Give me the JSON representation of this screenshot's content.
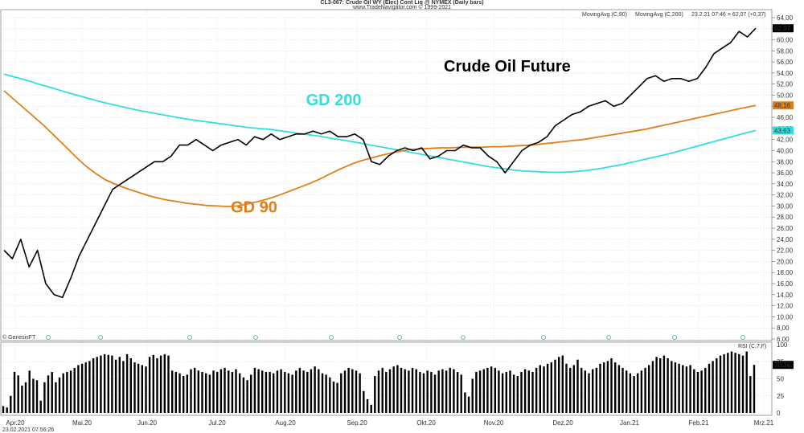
{
  "header": {
    "title_line1": "CL3-067: Crude Oil WY (Elec) Cont Liq @ NYMEX  (Daily bars)",
    "title_line2": "www.TradeNavigator.com © 1999-2021",
    "legend_ma90": "MovingAvg (C,90)",
    "legend_ma200": "MovingAvg (C,200)",
    "info": "23.2.21 07:46 = 62,07 (+0,37)"
  },
  "footer": {
    "genesis": "© GenesisFT",
    "timestamp": "23.02.2021 07:56:26"
  },
  "rsi_label": "RSI (C,7,F)",
  "chart_data": {
    "type": "line",
    "title": "Crude Oil Future",
    "colors": {
      "price": "#000000",
      "ma90": "#e07f1a",
      "ma200": "#33dede"
    },
    "annotations": [
      {
        "text": "GD 200",
        "color": "#33dede",
        "x_index": 40,
        "y": 48.2
      },
      {
        "text": "GD 90",
        "color": "#e07f1a",
        "x_index": 31,
        "y": 28.8
      }
    ],
    "price_axis": {
      "min": 6,
      "max": 65,
      "ticks": [
        "6,00",
        "8,00",
        "10,00",
        "12,00",
        "14,00",
        "16,00",
        "18,00",
        "20,00",
        "22,00",
        "24,00",
        "26,00",
        "28,00",
        "30,00",
        "32,00",
        "34,00",
        "36,00",
        "38,00",
        "40,00",
        "42,00",
        "44,00",
        "46,00",
        "48,00",
        "50,00",
        "52,00",
        "54,00",
        "56,00",
        "58,00",
        "60,00",
        "62,00",
        "64,00"
      ],
      "last_price_tag": "62,07",
      "ma90_tag": "48,16",
      "ma200_tag": "43,63"
    },
    "x_labels": [
      "Apr.20",
      "Mai.20",
      "Jun.20",
      "Jul.20",
      "Aug.20",
      "Sep.20",
      "Okt.20",
      "Nov.20",
      "Dez.20",
      "Jan.21",
      "Feb.21",
      "Mrz.21"
    ],
    "month_start_index": [
      0,
      9,
      18,
      27,
      36,
      45,
      54,
      63,
      72,
      81,
      90,
      99
    ],
    "price": [
      22,
      20.5,
      24,
      19,
      22,
      16,
      14,
      13.5,
      17,
      21,
      24,
      27,
      30,
      33,
      34,
      35,
      36,
      37,
      38,
      38,
      39,
      41,
      41,
      42,
      41,
      40,
      41,
      41.5,
      42,
      41,
      42.5,
      42,
      43,
      42,
      42.5,
      43,
      43,
      43.5,
      43,
      43.5,
      42.5,
      42.5,
      43,
      42,
      38,
      37.5,
      39,
      40,
      40.5,
      40,
      40.5,
      38.5,
      39,
      40,
      40,
      41,
      40.5,
      40.5,
      39,
      38,
      36,
      38,
      40,
      41,
      41.5,
      42.5,
      44.5,
      45.5,
      46.5,
      47,
      48,
      48.5,
      49,
      48,
      48.5,
      50,
      51.5,
      53,
      53.5,
      52.5,
      53,
      53,
      52.5,
      53,
      55,
      57.5,
      58.5,
      59.5,
      61.5,
      60.5,
      62.07
    ],
    "ma90": [
      50.8,
      49.2,
      47.6,
      46.0,
      44.4,
      42.6,
      40.8,
      39.0,
      37.3,
      35.9,
      34.7,
      33.9,
      33.2,
      32.6,
      32.0,
      31.5,
      31.1,
      30.8,
      30.5,
      30.3,
      30.1,
      30.0,
      29.9,
      30.0,
      30.4,
      30.8,
      31.3,
      31.9,
      32.6,
      33.3,
      34.0,
      34.8,
      35.7,
      36.6,
      37.4,
      38.1,
      38.6,
      39.1,
      39.5,
      39.9,
      40.2,
      40.3,
      40.4,
      40.5,
      40.5,
      40.6,
      40.6,
      40.6,
      40.7,
      40.7,
      40.8,
      40.9,
      41.0,
      41.2,
      41.4,
      41.6,
      41.8,
      42.0,
      42.3,
      42.6,
      42.9,
      43.2,
      43.5,
      43.8,
      44.2,
      44.6,
      45.0,
      45.4,
      45.8,
      46.2,
      46.6,
      47.0,
      47.4,
      47.8,
      48.16
    ],
    "ma200": [
      53.8,
      53.2,
      52.6,
      51.9,
      51.3,
      50.6,
      50.0,
      49.4,
      48.8,
      48.3,
      47.8,
      47.3,
      46.9,
      46.5,
      46.1,
      45.7,
      45.4,
      45.1,
      44.8,
      44.5,
      44.2,
      44.0,
      43.8,
      43.5,
      43.2,
      42.9,
      42.6,
      42.2,
      41.9,
      41.5,
      41.1,
      40.7,
      40.3,
      39.9,
      39.5,
      39.1,
      38.7,
      38.3,
      37.9,
      37.5,
      37.1,
      36.8,
      36.5,
      36.3,
      36.2,
      36.1,
      36.1,
      36.2,
      36.4,
      36.7,
      37.1,
      37.5,
      38.0,
      38.5,
      39.0,
      39.5,
      40.1,
      40.7,
      41.3,
      41.9,
      42.5,
      43.1,
      43.63
    ],
    "rsi_axis": {
      "min": 0,
      "max": 100,
      "ticks": [
        "0",
        "25",
        "50",
        "75",
        "100"
      ],
      "last_tag": "70,36"
    },
    "rsi": [
      10,
      8,
      25,
      60,
      55,
      40,
      45,
      62,
      50,
      48,
      18,
      45,
      55,
      60,
      45,
      52,
      58,
      60,
      62,
      66,
      70,
      72,
      74,
      76,
      80,
      82,
      84,
      86,
      85,
      84,
      78,
      82,
      76,
      86,
      80,
      74,
      72,
      70,
      68,
      82,
      85,
      80,
      84,
      86,
      84,
      62,
      60,
      58,
      54,
      56,
      64,
      66,
      62,
      60,
      58,
      56,
      62,
      60,
      64,
      66,
      62,
      60,
      64,
      58,
      52,
      48,
      56,
      66,
      64,
      62,
      60,
      60,
      58,
      62,
      64,
      60,
      58,
      56,
      62,
      66,
      62,
      60,
      64,
      68,
      64,
      58,
      56,
      52,
      46,
      44,
      58,
      62,
      66,
      64,
      62,
      58,
      32,
      20,
      12,
      54,
      62,
      66,
      60,
      64,
      68,
      70,
      66,
      64,
      62,
      66,
      64,
      60,
      58,
      62,
      60,
      56,
      62,
      64,
      62,
      66,
      64,
      60,
      56,
      30,
      24,
      50,
      60,
      62,
      64,
      66,
      68,
      66,
      62,
      58,
      60,
      62,
      56,
      54,
      60,
      64,
      62,
      60,
      66,
      70,
      68,
      72,
      74,
      78,
      82,
      84,
      72,
      66,
      70,
      78,
      66,
      62,
      58,
      64,
      66,
      72,
      74,
      76,
      80,
      74,
      70,
      66,
      62,
      58,
      54,
      58,
      62,
      66,
      70,
      76,
      82,
      80,
      84,
      80,
      76,
      74,
      72,
      70,
      68,
      70,
      64,
      60,
      62,
      66,
      72,
      76,
      80,
      84,
      86,
      88,
      90,
      88,
      86,
      84,
      90,
      54,
      70.36
    ]
  }
}
